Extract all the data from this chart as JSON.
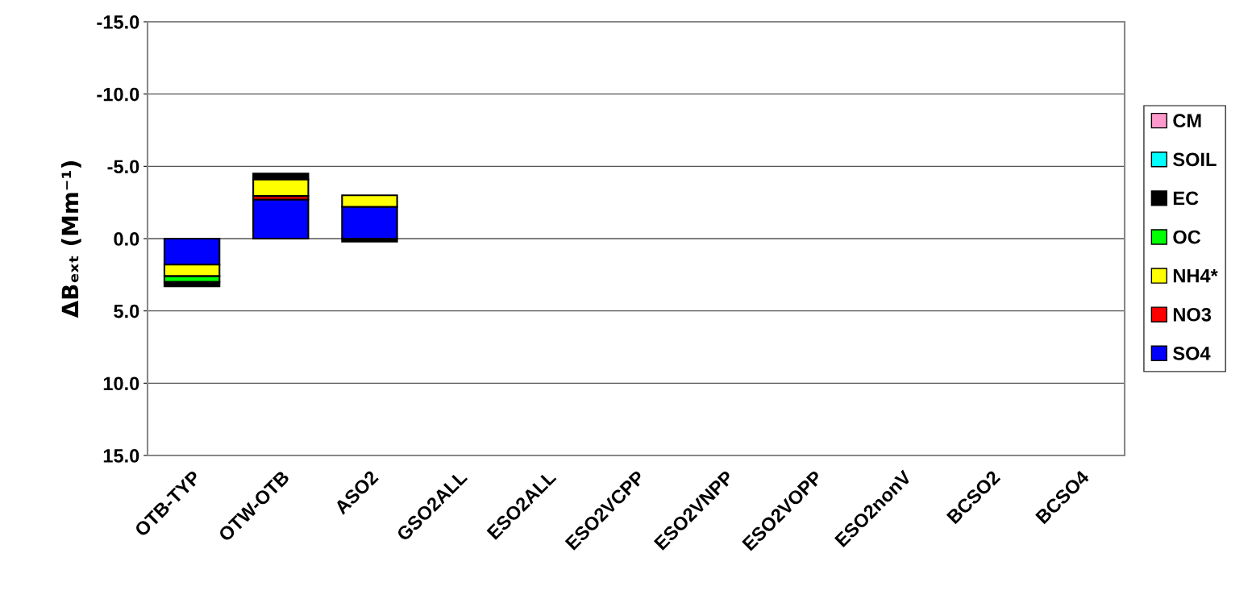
{
  "chart_data": {
    "type": "bar",
    "stacked": true,
    "ylabel": "ΔBₑₓₜ (Mm⁻¹)",
    "categories": [
      "OTB-TYP",
      "OTW-OTB",
      "ASO2",
      "GSO2ALL",
      "ESO2ALL",
      "ESO2VCPP",
      "ESO2VNPP",
      "ESO2VOPP",
      "ESO2nonV",
      "BCSO2",
      "BCSO4"
    ],
    "series": [
      {
        "name": "SO4",
        "color": "#0000ff",
        "values": [
          1.8,
          -2.7,
          -2.2,
          null,
          null,
          null,
          null,
          null,
          null,
          null,
          null
        ]
      },
      {
        "name": "NO3",
        "color": "#ff0000",
        "values": [
          null,
          -0.25,
          null,
          null,
          null,
          null,
          null,
          null,
          null,
          null,
          null
        ]
      },
      {
        "name": "NH4*",
        "color": "#ffff00",
        "values": [
          0.8,
          -1.15,
          -0.8,
          null,
          null,
          null,
          null,
          null,
          null,
          null,
          null
        ]
      },
      {
        "name": "OC",
        "color": "#00ff00",
        "values": [
          0.4,
          null,
          null,
          null,
          null,
          null,
          null,
          null,
          null,
          null,
          null
        ]
      },
      {
        "name": "EC",
        "color": "#000000",
        "values": [
          0.3,
          -0.4,
          0.2,
          null,
          null,
          null,
          null,
          null,
          null,
          null,
          null
        ]
      },
      {
        "name": "SOIL",
        "color": "#00ffff",
        "values": [
          null,
          null,
          null,
          null,
          null,
          null,
          null,
          null,
          null,
          null,
          null
        ]
      },
      {
        "name": "CM",
        "color": "#ff99cc",
        "values": [
          null,
          null,
          null,
          null,
          null,
          null,
          null,
          null,
          null,
          null,
          null
        ]
      }
    ],
    "ylim": [
      15,
      -15
    ],
    "yticks": [
      {
        "value": -15,
        "label": "-15.0"
      },
      {
        "value": -10,
        "label": "-10.0"
      },
      {
        "value": -5,
        "label": "-5.0"
      },
      {
        "value": 0,
        "label": "0.0"
      },
      {
        "value": 5,
        "label": "5.0"
      },
      {
        "value": 10,
        "label": "10.0"
      },
      {
        "value": 15,
        "label": "15.0"
      }
    ],
    "grid": "y",
    "legend": "right"
  }
}
